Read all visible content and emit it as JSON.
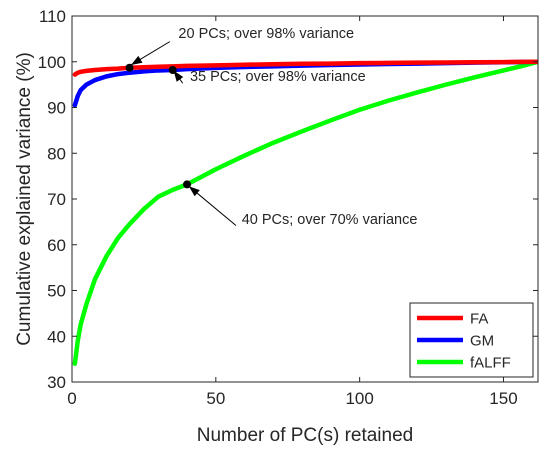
{
  "chart_data": {
    "type": "line",
    "xlabel": "Number of PC(s) retained",
    "ylabel": "Cumulative explained variance (%)",
    "xlim": [
      0,
      162
    ],
    "ylim": [
      30,
      110
    ],
    "xticks": [
      0,
      50,
      100,
      150
    ],
    "yticks": [
      30,
      40,
      50,
      60,
      70,
      80,
      90,
      100,
      110
    ],
    "grid": false,
    "legend_position": "bottom-right",
    "series": [
      {
        "name": "FA",
        "color": "#ff0000",
        "x": [
          1,
          2,
          3,
          5,
          8,
          12,
          16,
          20,
          25,
          30,
          35,
          40,
          50,
          60,
          70,
          80,
          90,
          100,
          110,
          120,
          130,
          140,
          150,
          156,
          162
        ],
        "y": [
          97.2,
          97.6,
          97.8,
          98.0,
          98.2,
          98.4,
          98.5,
          98.7,
          98.8,
          98.9,
          99.0,
          99.1,
          99.2,
          99.35,
          99.45,
          99.55,
          99.6,
          99.7,
          99.75,
          99.8,
          99.85,
          99.9,
          99.93,
          99.96,
          100
        ]
      },
      {
        "name": "GM",
        "color": "#0000ff",
        "x": [
          1,
          2,
          3,
          5,
          8,
          12,
          16,
          20,
          25,
          30,
          35,
          40,
          50,
          60,
          70,
          80,
          90,
          100,
          110,
          120,
          130,
          140,
          150,
          156,
          162
        ],
        "y": [
          90.5,
          92.5,
          93.8,
          95.0,
          96.0,
          96.8,
          97.3,
          97.6,
          97.9,
          98.1,
          98.2,
          98.4,
          98.65,
          98.85,
          99.0,
          99.15,
          99.3,
          99.4,
          99.5,
          99.6,
          99.7,
          99.8,
          99.88,
          99.94,
          100
        ]
      },
      {
        "name": "fALFF",
        "color": "#00ff00",
        "x": [
          1,
          2,
          3,
          5,
          8,
          12,
          16,
          20,
          25,
          30,
          35,
          40,
          50,
          60,
          70,
          80,
          90,
          100,
          110,
          120,
          130,
          140,
          150,
          156,
          162
        ],
        "y": [
          34.0,
          39.0,
          42.5,
          47.0,
          52.5,
          57.5,
          61.5,
          64.5,
          67.8,
          70.5,
          72.0,
          73.2,
          76.5,
          79.5,
          82.3,
          84.8,
          87.2,
          89.5,
          91.5,
          93.3,
          95.0,
          96.6,
          98.1,
          99.0,
          100
        ]
      }
    ],
    "markers": [
      {
        "x": 20,
        "y": 98.7
      },
      {
        "x": 35,
        "y": 98.2
      },
      {
        "x": 40,
        "y": 73.2
      }
    ],
    "annotations": [
      {
        "text": "20 PCs; over 98% variance",
        "arrow_from": [
          34,
          104.4
        ],
        "arrow_to": [
          20.5,
          99.3
        ],
        "text_at": [
          37,
          105.2
        ],
        "anchor": "start"
      },
      {
        "text": "35 PCs; over 98% variance",
        "arrow_from": [
          38.5,
          95.3
        ],
        "arrow_to": [
          35.3,
          98.1
        ],
        "text_at": [
          41,
          95.8
        ],
        "anchor": "start"
      },
      {
        "text": "40 PCs; over 70% variance",
        "arrow_from": [
          57,
          64.2
        ],
        "arrow_to": [
          40.6,
          72.8
        ],
        "text_at": [
          59,
          64.5
        ],
        "anchor": "start"
      }
    ]
  }
}
